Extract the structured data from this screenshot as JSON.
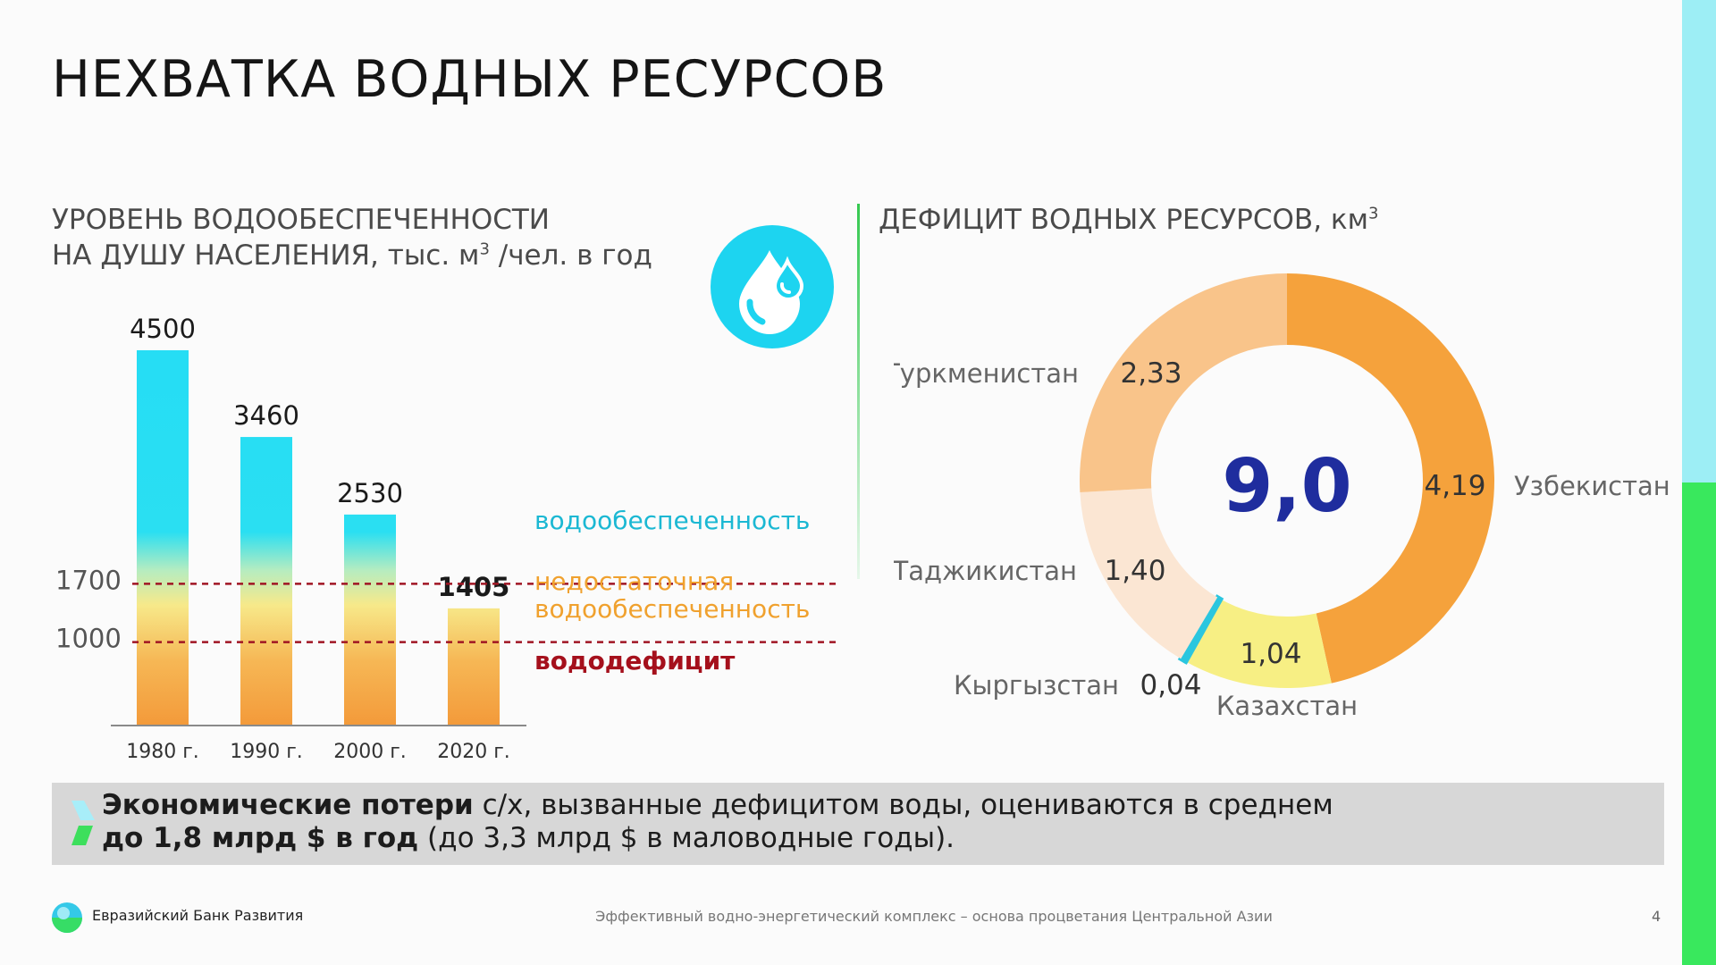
{
  "slide": {
    "title": "НЕХВАТКА ВОДНЫХ РЕСУРСОВ",
    "page_number": "4",
    "accent_colors": {
      "side_top": "#9deef5",
      "side_bottom": "#39e85d",
      "cyan": "#1dd4f0",
      "orange": "#f5a23c"
    }
  },
  "left_panel": {
    "subtitle_line1": "УРОВЕНЬ ВОДООБЕСПЕЧЕННОСТИ",
    "subtitle_line2_pre": "НА ДУШУ НАСЕЛЕНИЯ, тыс. м",
    "subtitle_sup": "3",
    "subtitle_line2_post": " /чел. в год",
    "icon": "water-drop-icon"
  },
  "right_panel": {
    "subtitle_pre": "ДЕФИЦИТ ВОДНЫХ РЕСУРСОВ, км",
    "subtitle_sup": "3"
  },
  "chart_data": [
    {
      "type": "bar",
      "categories": [
        "1980 г.",
        "1990 г.",
        "2000 г.",
        "2020 г."
      ],
      "values": [
        4500,
        3460,
        2530,
        1405
      ],
      "value_labels": [
        "4500",
        "3460",
        "2530",
        "1405"
      ],
      "highlight_index": 3,
      "reference_lines": [
        {
          "value": 1700,
          "label": "1700"
        },
        {
          "value": 1000,
          "label": "1000"
        }
      ],
      "zones": [
        {
          "label": "водообеспеченность",
          "color": "#1bb8d3"
        },
        {
          "label_line1": "недостаточная",
          "label_line2": "водообеспеченность",
          "color": "#f0a12e"
        },
        {
          "label": "вододефицит",
          "color": "#a5101c"
        }
      ],
      "ylim": [
        0,
        4500
      ],
      "grid": false
    },
    {
      "type": "pie",
      "donut": true,
      "center_label": "9,0",
      "total": 9.0,
      "slices": [
        {
          "name": "Узбекистан",
          "value": 4.19,
          "label": "4,19",
          "color": "#f5a23c"
        },
        {
          "name": "Казахстан",
          "value": 1.04,
          "label": "1,04",
          "color": "#f7ef84"
        },
        {
          "name": "Кыргызстан",
          "value": 0.04,
          "label": "0,04",
          "color": "#2bc6df"
        },
        {
          "name": "Таджикистан",
          "value": 1.4,
          "label": "1,40",
          "color": "#fbe6d3"
        },
        {
          "name": "Туркменистан",
          "value": 2.33,
          "label": "2,33",
          "color": "#f9c48a"
        }
      ]
    }
  ],
  "callout": {
    "bold1": "Экономические потери",
    "text1": " с/х, вызванные дефицитом воды, оцениваются в среднем",
    "bold2": "до 1,8 млрд $ в год",
    "text2": " (до 3,3 млрд $ в маловодные годы)."
  },
  "footer": {
    "org_name": "Евразийский Банк Развития",
    "tagline": "Эффективный водно-энергетический комплекс – основа процветания Центральной Азии",
    "logo": "ebd-logo-icon"
  }
}
